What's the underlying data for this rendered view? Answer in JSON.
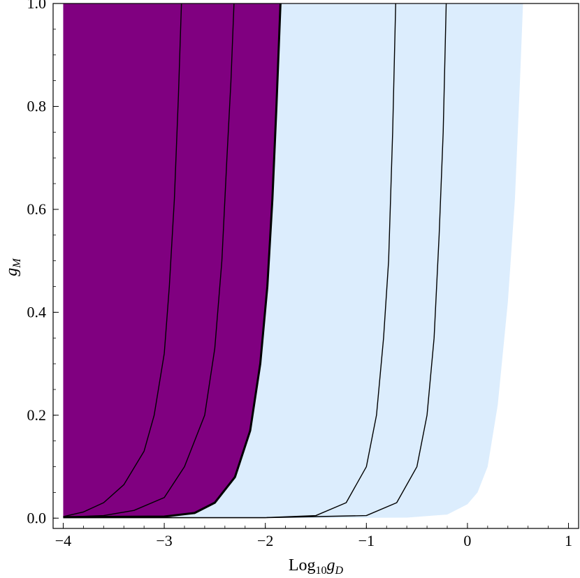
{
  "chart_data": {
    "type": "area",
    "xlabel": {
      "base": "Log",
      "sub": "10",
      "var": "g",
      "var_sub": "D"
    },
    "ylabel": {
      "var": "g",
      "var_sub": "M"
    },
    "xlim": [
      -4.1,
      1.1
    ],
    "ylim": [
      -0.02,
      1.0
    ],
    "x_ticks": [
      {
        "value": -4,
        "label": "−4"
      },
      {
        "value": -3,
        "label": "−3"
      },
      {
        "value": -2,
        "label": "−2"
      },
      {
        "value": -1,
        "label": "−1"
      },
      {
        "value": 0,
        "label": "0"
      },
      {
        "value": 1,
        "label": "1"
      }
    ],
    "y_ticks": [
      {
        "value": 0.0,
        "label": "0.0"
      },
      {
        "value": 0.2,
        "label": "0.2"
      },
      {
        "value": 0.4,
        "label": "0.4"
      },
      {
        "value": 0.6,
        "label": "0.6"
      },
      {
        "value": 0.8,
        "label": "0.8"
      },
      {
        "value": 1.0,
        "label": "1.0"
      }
    ],
    "grid": false,
    "colors": {
      "purple_region": "#800080",
      "blue_region": "#dcedfd",
      "curve": "#000000"
    },
    "regions": [
      {
        "color": "purple_region",
        "left_x": -4.0,
        "boundary_curve": "c_boundary"
      },
      {
        "color": "blue_region",
        "left_curve": "c_boundary",
        "right_boundary": [
          [
            -1.5,
            0.0
          ],
          [
            -0.6,
            0.001
          ],
          [
            -0.2,
            0.007
          ],
          [
            0.0,
            0.027
          ],
          [
            0.1,
            0.05
          ],
          [
            0.2,
            0.1
          ],
          [
            0.3,
            0.22
          ],
          [
            0.4,
            0.42
          ],
          [
            0.47,
            0.62
          ],
          [
            0.52,
            0.85
          ],
          [
            0.55,
            1.0
          ]
        ]
      }
    ],
    "series": [
      {
        "id": "c1",
        "thick": false,
        "points": [
          [
            -4.0,
            0.003
          ],
          [
            -3.8,
            0.012
          ],
          [
            -3.6,
            0.03
          ],
          [
            -3.4,
            0.065
          ],
          [
            -3.2,
            0.13
          ],
          [
            -3.1,
            0.2
          ],
          [
            -3.0,
            0.32
          ],
          [
            -2.95,
            0.45
          ],
          [
            -2.9,
            0.62
          ],
          [
            -2.86,
            0.82
          ],
          [
            -2.83,
            1.0
          ]
        ]
      },
      {
        "id": "c2",
        "thick": false,
        "points": [
          [
            -4.0,
            0.002
          ],
          [
            -3.6,
            0.005
          ],
          [
            -3.3,
            0.015
          ],
          [
            -3.0,
            0.04
          ],
          [
            -2.8,
            0.1
          ],
          [
            -2.6,
            0.2
          ],
          [
            -2.5,
            0.33
          ],
          [
            -2.43,
            0.5
          ],
          [
            -2.38,
            0.7
          ],
          [
            -2.34,
            0.85
          ],
          [
            -2.31,
            1.0
          ]
        ]
      },
      {
        "id": "c_boundary",
        "thick": true,
        "points": [
          [
            -4.0,
            0.002
          ],
          [
            -3.0,
            0.003
          ],
          [
            -2.7,
            0.01
          ],
          [
            -2.5,
            0.03
          ],
          [
            -2.3,
            0.08
          ],
          [
            -2.15,
            0.17
          ],
          [
            -2.05,
            0.3
          ],
          [
            -1.98,
            0.45
          ],
          [
            -1.93,
            0.62
          ],
          [
            -1.89,
            0.8
          ],
          [
            -1.85,
            1.0
          ]
        ]
      },
      {
        "id": "c3",
        "thick": false,
        "points": [
          [
            -4.0,
            0.001
          ],
          [
            -2.0,
            0.001
          ],
          [
            -1.5,
            0.005
          ],
          [
            -1.2,
            0.03
          ],
          [
            -1.0,
            0.1
          ],
          [
            -0.9,
            0.2
          ],
          [
            -0.83,
            0.35
          ],
          [
            -0.78,
            0.5
          ],
          [
            -0.74,
            0.75
          ],
          [
            -0.71,
            1.0
          ]
        ]
      },
      {
        "id": "c4",
        "thick": false,
        "points": [
          [
            -4.0,
            0.001
          ],
          [
            -2.0,
            0.001
          ],
          [
            -1.0,
            0.005
          ],
          [
            -0.7,
            0.03
          ],
          [
            -0.5,
            0.1
          ],
          [
            -0.4,
            0.2
          ],
          [
            -0.33,
            0.35
          ],
          [
            -0.28,
            0.55
          ],
          [
            -0.24,
            0.75
          ],
          [
            -0.21,
            1.0
          ]
        ]
      }
    ]
  }
}
